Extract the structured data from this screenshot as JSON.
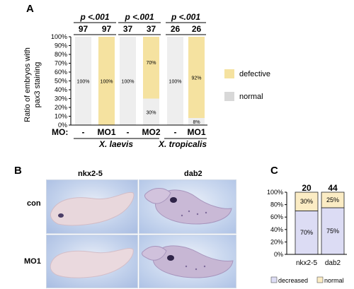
{
  "panels": {
    "a": "A",
    "b": "B",
    "c": "C"
  },
  "panel_a": {
    "ylabel_line1": "Ratio of embryos with",
    "ylabel_line2": "pax3 staining",
    "mo_label": "MO:",
    "legend": {
      "defective": "defective",
      "normal": "normal"
    },
    "groups": [
      {
        "species": "X. laevis",
        "pvalue": "p <.001",
        "counts": [
          "97",
          "97"
        ],
        "mo": [
          "-",
          "MO1"
        ]
      },
      {
        "species": "",
        "pvalue": "p <.001",
        "counts": [
          "37",
          "37"
        ],
        "mo": [
          "-",
          "MO2"
        ]
      },
      {
        "species": "X. tropicalis",
        "pvalue": "p <.001",
        "counts": [
          "26",
          "26"
        ],
        "mo": [
          "-",
          "MO1"
        ]
      }
    ],
    "species_labels": [
      "X. laevis",
      "X. tropicalis"
    ]
  },
  "panel_b": {
    "columns": [
      "nkx2-5",
      "dab2"
    ],
    "rows": [
      "con",
      "MO1"
    ]
  },
  "panel_c": {
    "counts": [
      "20",
      "44"
    ],
    "legend": {
      "decreased": "decreased",
      "normal": "normal"
    }
  },
  "colors": {
    "defective": "#f5e2a0",
    "normal_bar": "#eeeeee",
    "normal_legend": "#d8d8d8",
    "decreased": "#dcdcf4",
    "c_normal": "#fbecc4"
  },
  "chart_data": [
    {
      "type": "bar",
      "stacked": true,
      "categories": [
        "-",
        "MO1",
        "-",
        "MO2",
        "-",
        "MO1"
      ],
      "yticks": [
        "0%",
        "10%",
        "20%",
        "30%",
        "40%",
        "50%",
        "60%",
        "70%",
        "80%",
        "90%",
        "100%"
      ],
      "ylim": [
        0,
        100
      ],
      "series": [
        {
          "name": "normal",
          "values": [
            100,
            0,
            100,
            30,
            100,
            8
          ],
          "labels": [
            "100%",
            "",
            "100%",
            "30%",
            "100%",
            "8%"
          ]
        },
        {
          "name": "defective",
          "values": [
            0,
            100,
            0,
            70,
            0,
            92
          ],
          "labels": [
            "",
            "100%",
            "",
            "70%",
            "",
            "92%"
          ]
        }
      ]
    },
    {
      "type": "bar",
      "stacked": true,
      "categories": [
        "nkx2-5",
        "dab2"
      ],
      "yticks": [
        "0%",
        "20%",
        "40%",
        "60%",
        "80%",
        "100%"
      ],
      "ylim": [
        0,
        100
      ],
      "series": [
        {
          "name": "decreased",
          "values": [
            70,
            75
          ],
          "labels": [
            "70%",
            "75%"
          ]
        },
        {
          "name": "normal",
          "values": [
            30,
            25
          ],
          "labels": [
            "30%",
            "25%"
          ]
        }
      ]
    }
  ]
}
